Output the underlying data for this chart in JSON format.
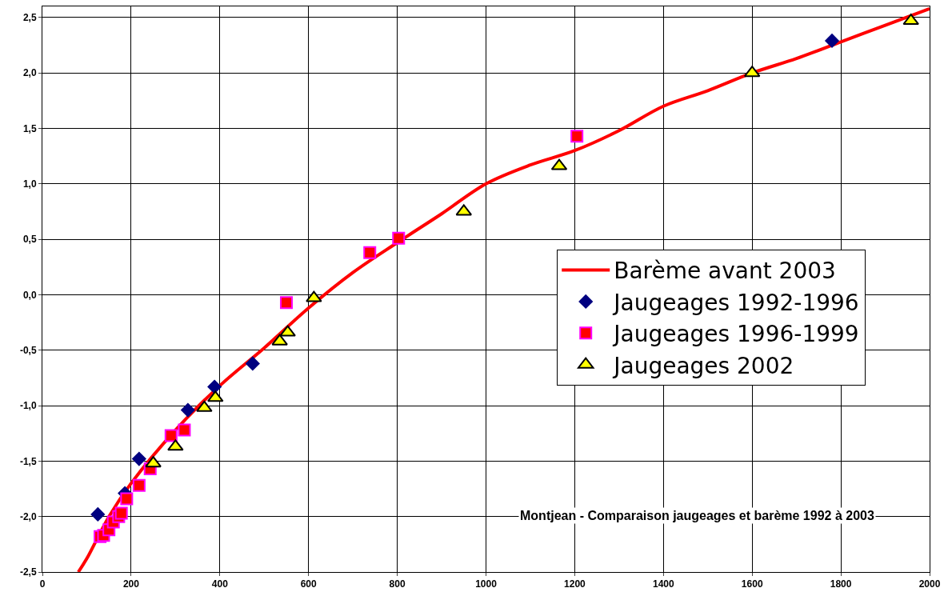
{
  "chart_data": {
    "type": "scatter",
    "title": "Montjean - Comparaison jaugeages et barème 1992 à 2003",
    "xlim": [
      0,
      2000
    ],
    "xticks": [
      0,
      200,
      400,
      600,
      800,
      1000,
      1200,
      1400,
      1600,
      1800,
      2000
    ],
    "ylim": [
      -2.5,
      2.6
    ],
    "yticks": [
      {
        "value": -2.5,
        "label": "-2,5"
      },
      {
        "value": -2,
        "label": "-2,0"
      },
      {
        "value": -1.5,
        "label": "-1,5"
      },
      {
        "value": -1,
        "label": "-1,0"
      },
      {
        "value": -0.5,
        "label": "-0,5"
      },
      {
        "value": 0,
        "label": "0,0"
      },
      {
        "value": 0.5,
        "label": "0,5"
      },
      {
        "value": 1,
        "label": "1,0"
      },
      {
        "value": 1.5,
        "label": "1,5"
      },
      {
        "value": 2,
        "label": "2,0"
      },
      {
        "value": 2.5,
        "label": "2,5"
      }
    ],
    "grid": true,
    "legend": "right",
    "series": [
      {
        "name": "Barème avant 2003",
        "type": "line",
        "color": "#ff0000",
        "line_style": "solid",
        "marker": "none",
        "x": [
          81,
          100,
          150,
          200,
          300,
          400,
          500,
          600,
          700,
          800,
          900,
          1000,
          1100,
          1200,
          1300,
          1400,
          1500,
          1600,
          1700,
          1800,
          1900,
          2000
        ],
        "values": [
          -2.5,
          -2.38,
          -2.0,
          -1.7,
          -1.22,
          -0.82,
          -0.48,
          -0.12,
          0.2,
          0.47,
          0.73,
          1.0,
          1.17,
          1.3,
          1.48,
          1.7,
          1.84,
          2.0,
          2.13,
          2.28,
          2.43,
          2.58
        ]
      },
      {
        "name": "Jaugeages 1992-1996",
        "color": "#000080",
        "marker": "diamond",
        "x": [
          125,
          186,
          218,
          328,
          388,
          474,
          1780
        ],
        "values": [
          -1.98,
          -1.79,
          -1.48,
          -1.04,
          -0.83,
          -0.62,
          2.29
        ]
      },
      {
        "name": "Jaugeages 1996-1999",
        "color": "#ff0000",
        "marker": "square",
        "x": [
          130,
          138,
          150,
          160,
          172,
          178,
          190,
          218,
          243,
          290,
          320,
          550,
          738,
          803,
          1205
        ],
        "values": [
          -2.18,
          -2.17,
          -2.12,
          -2.05,
          -2.0,
          -1.97,
          -1.84,
          -1.72,
          -1.57,
          -1.27,
          -1.22,
          -0.07,
          0.38,
          0.51,
          1.43
        ]
      },
      {
        "name": "Jaugeages 2002",
        "color": "#ffff00",
        "marker": "triangle",
        "x": [
          250,
          300,
          365,
          390,
          535,
          553,
          612,
          950,
          1165,
          1600,
          1958
        ],
        "values": [
          -1.52,
          -1.37,
          -1.02,
          -0.93,
          -0.42,
          -0.34,
          -0.03,
          0.75,
          1.16,
          2.0,
          2.47
        ]
      }
    ]
  }
}
